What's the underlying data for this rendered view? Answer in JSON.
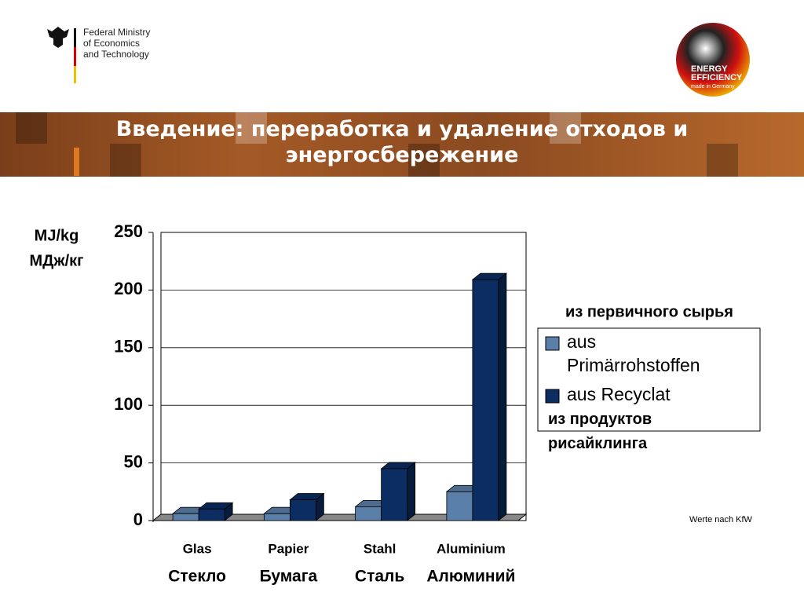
{
  "header": {
    "ministry_lines": [
      "Federal Ministry",
      "of Economics",
      "and Technology"
    ],
    "logo_lines": [
      "ENERGY",
      "EFFICIENCY",
      "made in Germany"
    ],
    "title": "Введение: переработка и удаление отходов и энергосбережение"
  },
  "chart_data": {
    "type": "bar",
    "y_label_lines": [
      "MJ/kg",
      "МДж/кг"
    ],
    "categories": [
      "Glas",
      "Papier",
      "Stahl",
      "Aluminium"
    ],
    "category_translations": [
      "Стекло",
      "Бумага",
      "Сталь",
      "Алюминий"
    ],
    "series": [
      {
        "name": "aus Primärrohstoffen",
        "color": "#5a7fa8",
        "values": [
          6,
          6,
          12,
          25
        ]
      },
      {
        "name": "aus Recyclat",
        "color": "#0b2d62",
        "values": [
          10,
          18,
          45,
          209
        ]
      }
    ],
    "legend_title": "из первичного сырья",
    "legend_note": "из продуктов рисайклинга",
    "ylim": [
      0,
      250
    ],
    "yticks": [
      0,
      50,
      100,
      150,
      200,
      250
    ],
    "grid": true,
    "note": "Werte nach KfW"
  }
}
